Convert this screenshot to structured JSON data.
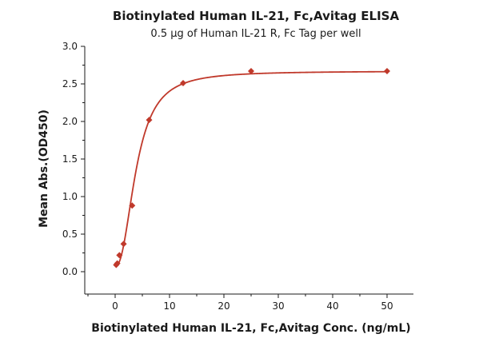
{
  "chart_data": {
    "type": "scatter",
    "title": "Biotinylated Human IL-21, Fc,Avitag ELISA",
    "subtitle": "0.5 μg of Human IL-21 R, Fc Tag per well",
    "xlabel": "Biotinylated Human IL-21, Fc,Avitag Conc. (ng/mL)",
    "ylabel": "Mean Abs.(OD450)",
    "xlim": [
      -5,
      55
    ],
    "ylim": [
      -0.3,
      3.0
    ],
    "xticks": [
      0,
      10,
      20,
      30,
      40,
      50
    ],
    "xtick_labels": [
      "0",
      "10",
      "20",
      "30",
      "40",
      "50"
    ],
    "yticks": [
      0.0,
      0.5,
      1.0,
      1.5,
      2.0,
      2.5,
      3.0
    ],
    "ytick_labels": [
      "0.0",
      "0.5",
      "1.0",
      "1.5",
      "2.0",
      "2.5",
      "3.0"
    ],
    "grid": false,
    "series": [
      {
        "x": [
          0.195,
          0.39,
          0.78,
          1.56,
          3.125,
          6.25,
          12.5,
          25,
          50
        ],
        "y": [
          0.09,
          0.11,
          0.22,
          0.37,
          0.88,
          2.02,
          2.51,
          2.67,
          2.67
        ],
        "marker": "diamond",
        "color": "#c0392b"
      }
    ],
    "fit_curve": {
      "model": "4PL",
      "bottom": 0.07,
      "top": 2.67,
      "ec50": 3.9,
      "hill": 2.3,
      "color": "#c0392b"
    }
  }
}
